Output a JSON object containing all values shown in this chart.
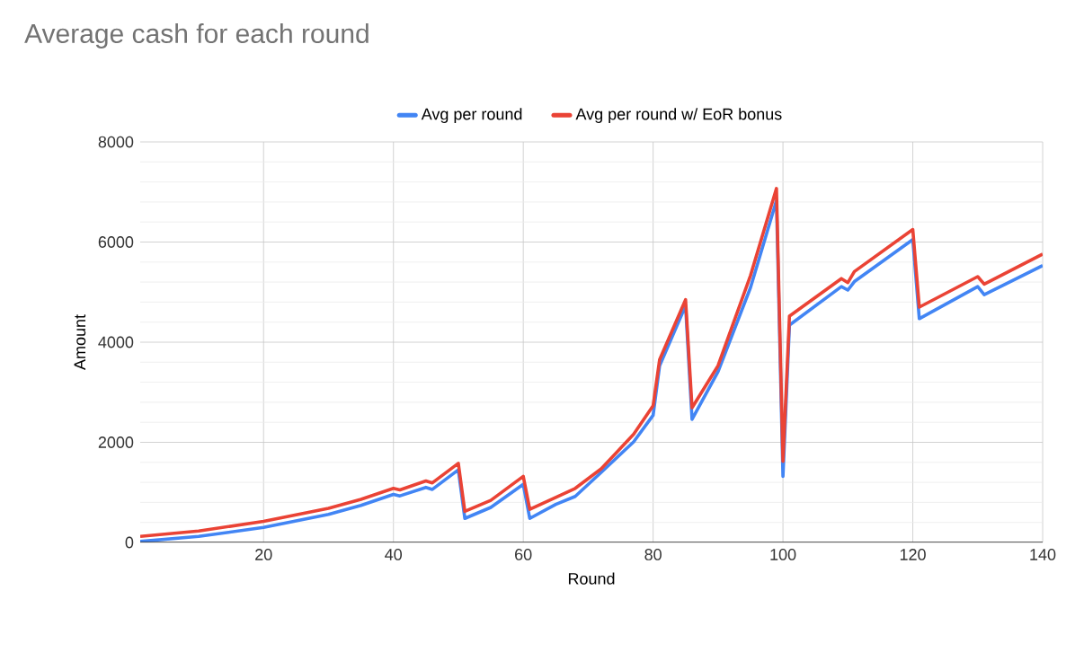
{
  "chart_data": {
    "type": "line",
    "title": "Average cash for each round",
    "xlabel": "Round",
    "ylabel": "Amount",
    "xlim": [
      1,
      140
    ],
    "xticks": [
      20,
      40,
      60,
      80,
      100,
      120,
      140
    ],
    "ylim": [
      0,
      8000
    ],
    "yticks": [
      0,
      2000,
      4000,
      6000,
      8000
    ],
    "grid": true,
    "legend": "top",
    "marker": "none",
    "line_style": "solid",
    "series": [
      {
        "name": "Avg per round",
        "color": "#4285f4",
        "x": [
          1,
          10,
          20,
          30,
          35,
          40,
          41,
          45,
          46,
          50,
          51,
          55,
          60,
          61,
          65,
          68,
          72,
          77,
          80,
          81,
          85,
          86,
          90,
          95,
          99,
          100,
          101,
          109,
          110,
          111,
          120,
          121,
          130,
          131,
          140
        ],
        "values": [
          20,
          120,
          300,
          560,
          740,
          960,
          930,
          1100,
          1060,
          1450,
          480,
          700,
          1160,
          480,
          760,
          920,
          1400,
          2010,
          2540,
          3530,
          4730,
          2460,
          3410,
          5090,
          6830,
          1320,
          4340,
          5110,
          5040,
          5210,
          6050,
          4470,
          5110,
          4950,
          5530
        ]
      },
      {
        "name": "Avg per round w/ EoR bonus",
        "color": "#ea4335",
        "x": [
          1,
          10,
          20,
          30,
          35,
          40,
          41,
          45,
          46,
          50,
          51,
          55,
          60,
          61,
          65,
          68,
          72,
          77,
          80,
          81,
          85,
          86,
          90,
          95,
          99,
          100,
          101,
          109,
          110,
          111,
          120,
          121,
          130,
          131,
          140
        ],
        "values": [
          120,
          230,
          420,
          680,
          860,
          1080,
          1050,
          1230,
          1190,
          1580,
          620,
          840,
          1320,
          660,
          900,
          1080,
          1470,
          2160,
          2730,
          3650,
          4850,
          2690,
          3530,
          5330,
          7070,
          1620,
          4520,
          5270,
          5190,
          5410,
          6250,
          4700,
          5310,
          5160,
          5760
        ]
      }
    ]
  }
}
